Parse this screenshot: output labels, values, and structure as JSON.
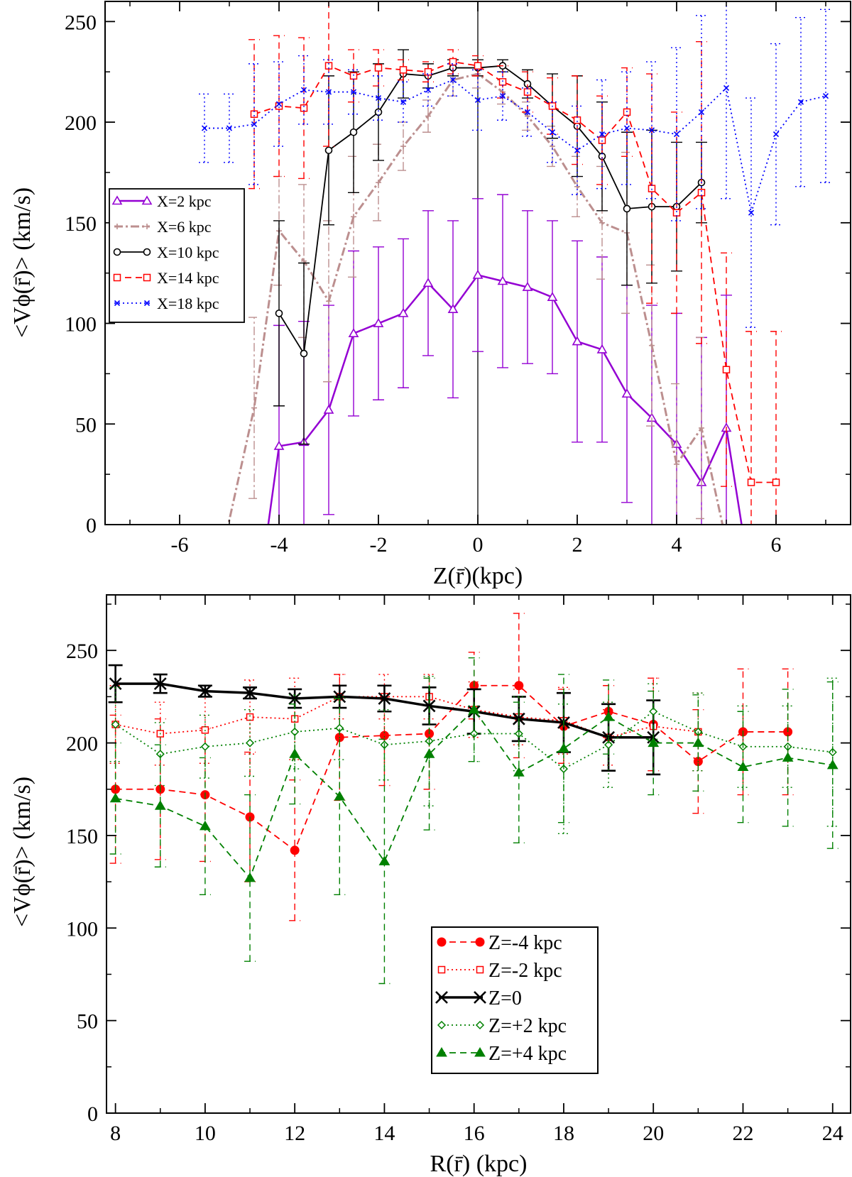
{
  "chart_data": [
    {
      "type": "line",
      "xlabel": "Z(r̄)(kpc)",
      "ylabel": "<Vϕ(r̄)> (km/s)",
      "xlim": [
        -7.5,
        7.5
      ],
      "ylim": [
        0,
        260
      ],
      "x_ticks": [
        -6,
        -4,
        -2,
        0,
        2,
        4,
        6
      ],
      "y_ticks": [
        0,
        50,
        100,
        150,
        200,
        250
      ],
      "grid": false,
      "legend_position": "middle-left",
      "vertical_line_at": 0,
      "series": [
        {
          "name": "X=2 kpc",
          "color": "#9400d3",
          "dash": "",
          "width": 2.5,
          "marker": "triangle-open",
          "x": [
            -4,
            -3.5,
            -3,
            -2.5,
            -2,
            -1.5,
            -1,
            -0.5,
            0,
            0.5,
            1,
            1.5,
            2,
            2.5,
            3,
            3.5,
            4,
            4.5,
            5
          ],
          "y": [
            39,
            41,
            57,
            95,
            100,
            105,
            120,
            107,
            124,
            121,
            118,
            113,
            91,
            87,
            65,
            53,
            40,
            21,
            48
          ],
          "err": [
            60,
            60,
            52,
            41,
            38,
            37,
            36,
            44,
            38,
            43,
            38,
            38,
            50,
            46,
            54,
            56,
            65,
            72,
            66
          ],
          "extend_left": [
            -4.3,
            -15
          ],
          "extend_right": [
            5.5,
            -30
          ]
        },
        {
          "name": "X=6 kpc",
          "color": "#bc8f8f",
          "dash": "12 4 3 4",
          "width": 3,
          "marker": "plus",
          "x": [
            -4.5,
            -4,
            -3.5,
            -3,
            -2.5,
            -2,
            -1.5,
            -1,
            -0.5,
            0,
            0.5,
            1,
            1.5,
            2,
            2.5,
            3,
            3.5,
            4,
            4.5
          ],
          "y": [
            58,
            146,
            131,
            111,
            153,
            170,
            188,
            203,
            221,
            224,
            215,
            203,
            188,
            168,
            150,
            145,
            89,
            30,
            48
          ],
          "err": [
            45,
            27,
            38,
            40,
            30,
            19,
            12,
            8,
            8,
            7,
            6,
            7,
            10,
            15,
            28,
            40,
            40,
            40,
            45
          ],
          "extend_left": [
            -5.2,
            -20
          ],
          "extend_right": [
            5.1,
            -20
          ]
        },
        {
          "name": "X=10 kpc",
          "color": "#000000",
          "dash": "",
          "width": 1.8,
          "marker": "circle-open",
          "x": [
            -4,
            -3.5,
            -3,
            -2.5,
            -2,
            -1.5,
            -1,
            -0.5,
            0,
            0.5,
            1,
            1.5,
            2,
            2.5,
            3,
            3.5,
            4,
            4.5
          ],
          "y": [
            105,
            85,
            186,
            195,
            205,
            224,
            223,
            227,
            227,
            228,
            219,
            208,
            198,
            183,
            157,
            158,
            158,
            170
          ],
          "err": [
            46,
            45,
            37,
            30,
            24,
            12,
            6,
            4,
            4,
            3,
            7,
            16,
            25,
            27,
            38,
            38,
            32,
            20
          ]
        },
        {
          "name": "X=14 kpc",
          "color": "#ff0000",
          "dash": "9 6",
          "width": 1.8,
          "marker": "square-open",
          "x": [
            -4.5,
            -4,
            -3.5,
            -3,
            -2.5,
            -2,
            -1.5,
            -1,
            -0.5,
            0,
            0.5,
            1,
            1.5,
            2,
            2.5,
            3,
            3.5,
            4,
            4.5,
            5,
            5.5,
            6
          ],
          "y": [
            204,
            208,
            207,
            228,
            223,
            227,
            226,
            225,
            230,
            228,
            220,
            215,
            208,
            201,
            191,
            205,
            167,
            155,
            165,
            77,
            21,
            21
          ],
          "err": [
            37,
            35,
            35,
            40,
            13,
            9,
            5,
            5,
            6,
            5,
            8,
            10,
            14,
            22,
            22,
            22,
            57,
            50,
            75,
            58,
            75,
            75
          ]
        },
        {
          "name": "X=18 kpc",
          "color": "#0000ff",
          "dash": "2 4",
          "width": 1.8,
          "marker": "cross",
          "x": [
            -5.5,
            -5,
            -4.5,
            -4,
            -3.5,
            -3,
            -2.5,
            -2,
            -1.5,
            -1,
            -0.5,
            0,
            0.5,
            1,
            1.5,
            2,
            2.5,
            3,
            3.5,
            4,
            4.5,
            5,
            5.5,
            6,
            6.5,
            7
          ],
          "y": [
            197,
            197,
            199,
            209,
            216,
            215,
            215,
            212,
            210,
            216,
            221,
            211,
            213,
            205,
            195,
            186,
            194,
            197,
            196,
            194,
            205,
            217,
            155,
            194,
            210,
            213
          ],
          "err": [
            17,
            17,
            30,
            21,
            17,
            16,
            11,
            11,
            10,
            8,
            8,
            15,
            12,
            12,
            15,
            22,
            27,
            28,
            34,
            43,
            48,
            55,
            57,
            45,
            42,
            43
          ]
        }
      ]
    },
    {
      "type": "line",
      "xlabel": "R(r̄) (kpc)",
      "ylabel": "<Vϕ(r̄)> (km/s)",
      "xlim": [
        7.8,
        24.4
      ],
      "ylim": [
        0,
        280
      ],
      "x_ticks": [
        8,
        10,
        12,
        14,
        16,
        18,
        20,
        22,
        24
      ],
      "y_ticks": [
        0,
        50,
        100,
        150,
        200,
        250
      ],
      "grid": false,
      "legend_position": "lower-center",
      "series": [
        {
          "name": "Z=-4 kpc",
          "color": "#ff0000",
          "dash": "9 6",
          "width": 1.8,
          "marker": "circle-filled",
          "x": [
            8,
            9,
            10,
            11,
            12,
            13,
            14,
            15,
            16,
            17,
            18,
            19,
            20,
            21,
            22,
            23
          ],
          "y": [
            175,
            175,
            172,
            160,
            142,
            203,
            204,
            205,
            231,
            231,
            209,
            217,
            210,
            190,
            206,
            206
          ],
          "err": [
            40,
            38,
            36,
            35,
            38,
            34,
            27,
            30,
            18,
            39,
            20,
            14,
            25,
            28,
            34,
            34
          ]
        },
        {
          "name": "Z=-2 kpc",
          "color": "#ff0000",
          "dash": "2 4",
          "width": 1.8,
          "marker": "square-open",
          "x": [
            8,
            9,
            10,
            11,
            12,
            13,
            14,
            15,
            16,
            17,
            18,
            19,
            20,
            21
          ],
          "y": [
            210,
            205,
            207,
            214,
            213,
            225,
            225,
            225,
            218,
            214,
            212,
            203,
            209,
            206
          ],
          "err": [
            21,
            17,
            18,
            20,
            22,
            12,
            12,
            12,
            15,
            15,
            18,
            15,
            26,
            21
          ]
        },
        {
          "name": "Z=0",
          "color": "#000000",
          "dash": "",
          "width": 3.5,
          "marker": "x-thick",
          "x": [
            8,
            9,
            10,
            11,
            12,
            13,
            14,
            15,
            16,
            17,
            18,
            19,
            20
          ],
          "y": [
            232,
            232,
            228,
            227,
            224,
            225,
            224,
            220,
            217,
            213,
            211,
            203,
            203
          ],
          "err": [
            10,
            5,
            3,
            3,
            5,
            6,
            7,
            10,
            12,
            12,
            16,
            18,
            20
          ]
        },
        {
          "name": "Z=+2 kpc",
          "color": "#008000",
          "dash": "2 4",
          "width": 1.8,
          "marker": "diamond-open",
          "x": [
            8,
            9,
            10,
            11,
            12,
            13,
            14,
            15,
            16,
            17,
            18,
            19,
            20,
            21,
            22,
            23,
            24
          ],
          "y": [
            210,
            194,
            198,
            200,
            206,
            208,
            199,
            201,
            205,
            205,
            186,
            199,
            217,
            206,
            198,
            198,
            195
          ],
          "err": [
            20,
            17,
            17,
            18,
            20,
            17,
            19,
            35,
            15,
            20,
            35,
            23,
            15,
            21,
            22,
            22,
            40
          ]
        },
        {
          "name": "Z=+4 kpc",
          "color": "#008000",
          "dash": "9 6",
          "width": 1.8,
          "marker": "triangle-filled",
          "x": [
            8,
            9,
            10,
            11,
            12,
            13,
            14,
            15,
            16,
            17,
            18,
            19,
            20,
            21,
            22,
            23,
            24
          ],
          "y": [
            170,
            166,
            155,
            127,
            194,
            171,
            136,
            194,
            218,
            184,
            197,
            214,
            200,
            200,
            187,
            192,
            188
          ],
          "err": [
            30,
            33,
            37,
            45,
            27,
            53,
            66,
            41,
            28,
            38,
            40,
            20,
            28,
            26,
            30,
            37,
            45
          ]
        }
      ]
    }
  ]
}
